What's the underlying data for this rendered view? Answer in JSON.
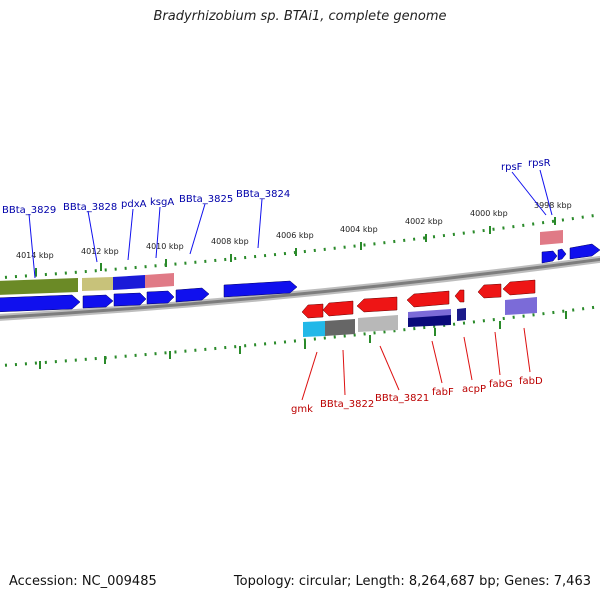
{
  "title": "Bradyrhizobium sp. BTAi1, complete genome",
  "footer": {
    "accession": "Accession: NC_009485",
    "summary": "Topology: circular; Length: 8,264,687 bp; Genes: 7,463"
  },
  "colors": {
    "forward_gene": "#1010ee",
    "reverse_gene": "#ee1515",
    "forward_label": "#0000aa",
    "reverse_label": "#bb0000",
    "tick": "#2a8a2a",
    "backbone": "#888888"
  },
  "scale_labels": [
    {
      "kbp": 3998,
      "label": "3998 kbp"
    },
    {
      "kbp": 4000,
      "label": "4000 kbp"
    },
    {
      "kbp": 4002,
      "label": "4002 kbp"
    },
    {
      "kbp": 4004,
      "label": "4004 kbp"
    },
    {
      "kbp": 4006,
      "label": "4006 kbp"
    },
    {
      "kbp": 4008,
      "label": "4008 kbp"
    },
    {
      "kbp": 4010,
      "label": "4010 kbp"
    },
    {
      "kbp": 4012,
      "label": "4012 kbp"
    },
    {
      "kbp": 4014,
      "label": "4014 kbp"
    }
  ],
  "forward_labels": [
    {
      "name": "BBta_3829"
    },
    {
      "name": "BBta_3828"
    },
    {
      "name": "pdxA"
    },
    {
      "name": "ksgA"
    },
    {
      "name": "BBta_3825"
    },
    {
      "name": "BBta_3824"
    },
    {
      "name": "rpsF"
    },
    {
      "name": "rpsR"
    }
  ],
  "reverse_labels": [
    {
      "name": "gmk"
    },
    {
      "name": "BBta_3822"
    },
    {
      "name": "BBta_3821"
    },
    {
      "name": "fabF"
    },
    {
      "name": "acpP"
    },
    {
      "name": "fabG"
    },
    {
      "name": "fabD"
    }
  ]
}
